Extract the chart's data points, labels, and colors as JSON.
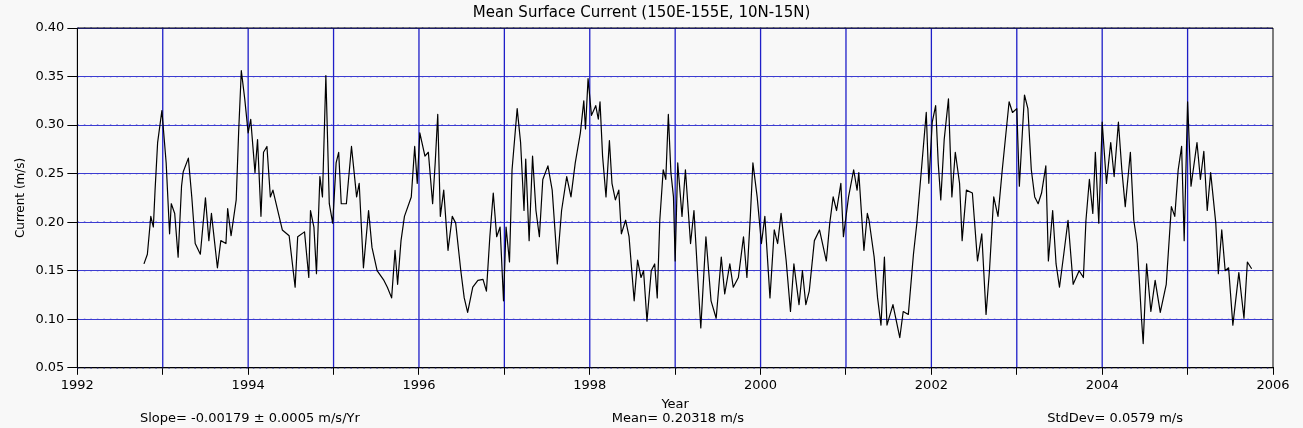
{
  "chart_data": {
    "type": "line",
    "title": "Mean Surface Current (150E-155E, 10N-15N)",
    "xlabel": "Year",
    "ylabel": "Current (m/s)",
    "xlim": [
      1992,
      2006
    ],
    "xticks": [
      1992,
      {
        "value": 1993,
        "label": null
      },
      1994,
      {
        "value": 1995,
        "label": null
      },
      1996,
      {
        "value": 1997,
        "label": null
      },
      1998,
      {
        "value": 1999,
        "label": null
      },
      2000,
      {
        "value": 2001,
        "label": null
      },
      2002,
      {
        "value": 2003,
        "label": null
      },
      2004,
      {
        "value": 2005,
        "label": null
      },
      2006
    ],
    "ylim": [
      0.05,
      0.4
    ],
    "yticks": [
      {
        "value": 0.05,
        "label": "0.05"
      },
      {
        "value": 0.1,
        "label": "0.10"
      },
      {
        "value": 0.15,
        "label": "0.15"
      },
      {
        "value": 0.2,
        "label": "0.20"
      },
      {
        "value": 0.25,
        "label": "0.25"
      },
      {
        "value": 0.3,
        "label": "0.30"
      },
      {
        "value": 0.35,
        "label": "0.35"
      },
      {
        "value": 0.4,
        "label": "0.40"
      }
    ],
    "grid": "y",
    "legend": false,
    "marker": "none",
    "line_style": "solid",
    "ref_lines": [
      {
        "axis": "x",
        "value": 1993,
        "color": "#1f1fc8"
      },
      {
        "axis": "x",
        "value": 1994,
        "color": "#1f1fc8"
      },
      {
        "axis": "x",
        "value": 1995,
        "color": "#1f1fc8"
      },
      {
        "axis": "x",
        "value": 1996,
        "color": "#1f1fc8"
      },
      {
        "axis": "x",
        "value": 1997,
        "color": "#1f1fc8"
      },
      {
        "axis": "x",
        "value": 1998,
        "color": "#1f1fc8"
      },
      {
        "axis": "x",
        "value": 1999,
        "color": "#1f1fc8"
      },
      {
        "axis": "x",
        "value": 2000,
        "color": "#1f1fc8"
      },
      {
        "axis": "x",
        "value": 2001,
        "color": "#1f1fc8"
      },
      {
        "axis": "x",
        "value": 2002,
        "color": "#1f1fc8"
      },
      {
        "axis": "x",
        "value": 2003,
        "color": "#1f1fc8"
      },
      {
        "axis": "x",
        "value": 2004,
        "color": "#1f1fc8"
      },
      {
        "axis": "x",
        "value": 2005,
        "color": "#1f1fc8"
      }
    ],
    "annotations": [
      "Slope= -0.00179 ± 0.0005 m/s/Yr",
      "Mean= 0.20318 m/s",
      "StdDev= 0.0579 m/s"
    ],
    "series": [
      {
        "color": "#000000",
        "x": [
          1992.78,
          1992.82,
          1992.86,
          1992.89,
          1992.91,
          1992.94,
          1992.99,
          1993.04,
          1993.08,
          1993.1,
          1993.14,
          1993.18,
          1993.22,
          1993.24,
          1993.3,
          1993.34,
          1993.38,
          1993.44,
          1993.5,
          1993.54,
          1993.57,
          1993.64,
          1993.68,
          1993.74,
          1993.76,
          1993.8,
          1993.86,
          1993.89,
          1993.92,
          1993.96,
          1994.0,
          1994.03,
          1994.08,
          1994.11,
          1994.15,
          1994.18,
          1994.22,
          1994.26,
          1994.29,
          1994.4,
          1994.48,
          1994.55,
          1994.58,
          1994.66,
          1994.71,
          1994.73,
          1994.77,
          1994.8,
          1994.84,
          1994.87,
          1994.91,
          1994.95,
          1994.99,
          1995.03,
          1995.06,
          1995.09,
          1995.15,
          1995.21,
          1995.27,
          1995.3,
          1995.35,
          1995.41,
          1995.45,
          1995.51,
          1995.59,
          1995.63,
          1995.68,
          1995.72,
          1995.75,
          1995.79,
          1995.83,
          1995.91,
          1995.95,
          1995.98,
          1996.01,
          1996.07,
          1996.11,
          1996.16,
          1996.19,
          1996.22,
          1996.25,
          1996.29,
          1996.34,
          1996.39,
          1996.43,
          1996.49,
          1996.53,
          1996.57,
          1996.63,
          1996.69,
          1996.75,
          1996.79,
          1996.83,
          1996.87,
          1996.91,
          1996.95,
          1996.99,
          1997.02,
          1997.06,
          1997.09,
          1997.15,
          1997.19,
          1997.23,
          1997.25,
          1997.29,
          1997.33,
          1997.37,
          1997.41,
          1997.45,
          1997.51,
          1997.56,
          1997.62,
          1997.67,
          1997.73,
          1997.78,
          1997.83,
          1997.89,
          1997.93,
          1997.95,
          1997.98,
          1998.02,
          1998.07,
          1998.1,
          1998.12,
          1998.15,
          1998.19,
          1998.23,
          1998.26,
          1998.3,
          1998.34,
          1998.37,
          1998.42,
          1998.46,
          1998.52,
          1998.56,
          1998.6,
          1998.63,
          1998.67,
          1998.72,
          1998.76,
          1998.79,
          1998.82,
          1998.86,
          1998.89,
          1998.92,
          1998.95,
          1998.98,
          1999.0,
          1999.03,
          1999.08,
          1999.12,
          1999.18,
          1999.22,
          1999.26,
          1999.3,
          1999.36,
          1999.42,
          1999.48,
          1999.54,
          1999.58,
          1999.64,
          1999.68,
          1999.74,
          1999.8,
          1999.84,
          1999.88,
          1999.91,
          1999.96,
          2000.01,
          2000.05,
          2000.11,
          2000.16,
          2000.2,
          2000.24,
          2000.3,
          2000.35,
          2000.39,
          2000.45,
          2000.49,
          2000.53,
          2000.57,
          2000.63,
          2000.69,
          2000.77,
          2000.81,
          2000.85,
          2000.89,
          2000.94,
          2000.97,
          2001.03,
          2001.09,
          2001.13,
          2001.15,
          2001.21,
          2001.25,
          2001.27,
          2001.33,
          2001.37,
          2001.41,
          2001.45,
          2001.48,
          2001.55,
          2001.63,
          2001.67,
          2001.73,
          2001.79,
          2001.83,
          2001.89,
          2001.94,
          2001.97,
          2002.01,
          2002.05,
          2002.08,
          2002.11,
          2002.15,
          2002.2,
          2002.24,
          2002.28,
          2002.33,
          2002.36,
          2002.41,
          2002.48,
          2002.54,
          2002.59,
          2002.64,
          2002.68,
          2002.73,
          2002.78,
          2002.83,
          2002.87,
          2002.91,
          2002.95,
          2003.0,
          2003.03,
          2003.09,
          2003.13,
          2003.17,
          2003.21,
          2003.25,
          2003.29,
          2003.34,
          2003.37,
          2003.42,
          2003.46,
          2003.5,
          2003.55,
          2003.6,
          2003.66,
          2003.73,
          2003.78,
          2003.81,
          2003.85,
          2003.89,
          2003.92,
          2003.96,
          2004.0,
          2004.05,
          2004.1,
          2004.14,
          2004.19,
          2004.23,
          2004.27,
          2004.33,
          2004.37,
          2004.41,
          2004.46,
          2004.48,
          2004.52,
          2004.57,
          2004.62,
          2004.68,
          2004.75,
          2004.81,
          2004.85,
          2004.89,
          2004.93,
          2004.96,
          2005.0,
          2005.04,
          2005.11,
          2005.15,
          2005.19,
          2005.23,
          2005.27,
          2005.33,
          2005.36,
          2005.4,
          2005.44,
          2005.48,
          2005.53,
          2005.6,
          2005.66,
          2005.7,
          2005.75
        ],
        "values": [
          0.157,
          0.167,
          0.206,
          0.195,
          0.233,
          0.282,
          0.315,
          0.261,
          0.188,
          0.219,
          0.209,
          0.164,
          0.237,
          0.252,
          0.266,
          0.226,
          0.178,
          0.167,
          0.225,
          0.181,
          0.209,
          0.153,
          0.181,
          0.178,
          0.214,
          0.186,
          0.223,
          0.296,
          0.356,
          0.327,
          0.292,
          0.306,
          0.251,
          0.285,
          0.206,
          0.272,
          0.278,
          0.226,
          0.233,
          0.192,
          0.186,
          0.133,
          0.185,
          0.19,
          0.143,
          0.212,
          0.195,
          0.147,
          0.247,
          0.226,
          0.351,
          0.219,
          0.199,
          0.261,
          0.272,
          0.219,
          0.219,
          0.278,
          0.226,
          0.24,
          0.153,
          0.212,
          0.174,
          0.15,
          0.14,
          0.133,
          0.122,
          0.171,
          0.136,
          0.181,
          0.206,
          0.226,
          0.278,
          0.24,
          0.292,
          0.268,
          0.272,
          0.219,
          0.261,
          0.311,
          0.206,
          0.233,
          0.171,
          0.206,
          0.199,
          0.15,
          0.122,
          0.107,
          0.133,
          0.14,
          0.141,
          0.129,
          0.185,
          0.23,
          0.185,
          0.195,
          0.119,
          0.195,
          0.159,
          0.254,
          0.317,
          0.282,
          0.212,
          0.265,
          0.181,
          0.268,
          0.212,
          0.185,
          0.244,
          0.258,
          0.233,
          0.157,
          0.212,
          0.247,
          0.226,
          0.261,
          0.292,
          0.325,
          0.296,
          0.348,
          0.31,
          0.32,
          0.306,
          0.324,
          0.268,
          0.226,
          0.284,
          0.24,
          0.223,
          0.233,
          0.188,
          0.202,
          0.185,
          0.119,
          0.161,
          0.143,
          0.15,
          0.098,
          0.15,
          0.157,
          0.122,
          0.202,
          0.254,
          0.244,
          0.311,
          0.251,
          0.226,
          0.16,
          0.261,
          0.206,
          0.254,
          0.178,
          0.212,
          0.15,
          0.091,
          0.185,
          0.119,
          0.101,
          0.164,
          0.126,
          0.157,
          0.133,
          0.143,
          0.185,
          0.143,
          0.206,
          0.261,
          0.226,
          0.178,
          0.206,
          0.122,
          0.192,
          0.178,
          0.209,
          0.16,
          0.108,
          0.157,
          0.115,
          0.15,
          0.115,
          0.129,
          0.181,
          0.192,
          0.16,
          0.199,
          0.226,
          0.212,
          0.24,
          0.185,
          0.226,
          0.254,
          0.233,
          0.251,
          0.171,
          0.209,
          0.202,
          0.164,
          0.122,
          0.094,
          0.164,
          0.094,
          0.115,
          0.081,
          0.108,
          0.105,
          0.167,
          0.199,
          0.261,
          0.313,
          0.24,
          0.303,
          0.32,
          0.261,
          0.223,
          0.285,
          0.327,
          0.226,
          0.272,
          0.24,
          0.181,
          0.233,
          0.23,
          0.16,
          0.188,
          0.105,
          0.15,
          0.226,
          0.206,
          0.254,
          0.289,
          0.324,
          0.313,
          0.317,
          0.237,
          0.331,
          0.317,
          0.254,
          0.226,
          0.219,
          0.23,
          0.258,
          0.16,
          0.212,
          0.157,
          0.133,
          0.167,
          0.202,
          0.136,
          0.15,
          0.143,
          0.202,
          0.244,
          0.209,
          0.272,
          0.199,
          0.303,
          0.24,
          0.282,
          0.247,
          0.303,
          0.254,
          0.216,
          0.272,
          0.202,
          0.178,
          0.101,
          0.075,
          0.157,
          0.108,
          0.14,
          0.107,
          0.136,
          0.216,
          0.206,
          0.254,
          0.278,
          0.181,
          0.324,
          0.237,
          0.282,
          0.244,
          0.273,
          0.212,
          0.251,
          0.199,
          0.147,
          0.192,
          0.15,
          0.153,
          0.094,
          0.148,
          0.101,
          0.159,
          0.152
        ]
      }
    ]
  }
}
